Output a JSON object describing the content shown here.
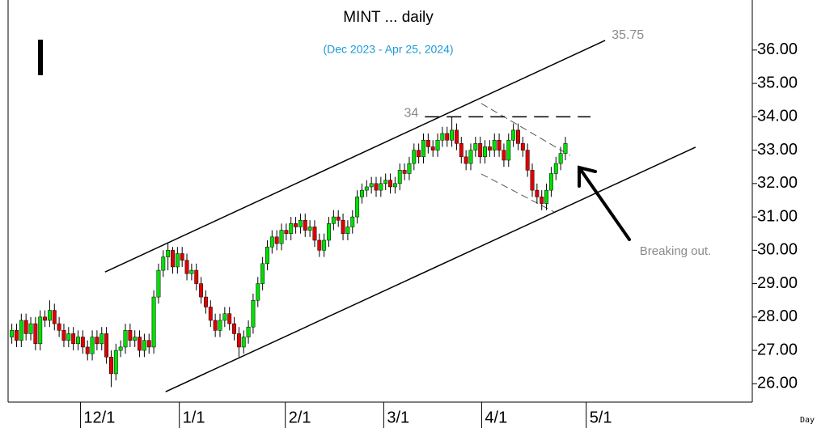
{
  "chart_data": {
    "type": "candlestick",
    "title": "MINT ... daily",
    "subtitle": "(Dec 2023 - Apr 25, 2024)",
    "marker_text": "I",
    "x_unit_label": "Day",
    "annotation": "Breaking out.",
    "channel_target": 35.75,
    "level": 34,
    "up_color": "#00e000",
    "down_color": "#e00000",
    "xlim": [
      -2.5,
      156.5
    ],
    "ylim": [
      25.45,
      37.5
    ],
    "xticks": [
      {
        "value": 14.5,
        "label": "12/1"
      },
      {
        "value": 35.4,
        "label": "1/1"
      },
      {
        "value": 57.8,
        "label": "2/1"
      },
      {
        "value": 78.6,
        "label": "3/1"
      },
      {
        "value": 99.3,
        "label": "4/1"
      },
      {
        "value": 121.4,
        "label": "5/1"
      }
    ],
    "yticks": [
      {
        "value": 26,
        "label": "26.00"
      },
      {
        "value": 27,
        "label": "27.00"
      },
      {
        "value": 28,
        "label": "28.00"
      },
      {
        "value": 29,
        "label": "29.00"
      },
      {
        "value": 30,
        "label": "30.00"
      },
      {
        "value": 31,
        "label": "31.00"
      },
      {
        "value": 32,
        "label": "32.00"
      },
      {
        "value": 33,
        "label": "33.00"
      },
      {
        "value": 34,
        "label": "34.00"
      },
      {
        "value": 35,
        "label": "35.00"
      },
      {
        "value": 36,
        "label": "36.00"
      }
    ],
    "trendlines": [
      {
        "style": "solid",
        "x": [
          19.7,
          125.4
        ],
        "y": [
          29.35,
          36.29
        ]
      },
      {
        "style": "solid",
        "x": [
          32.5,
          144.5
        ],
        "y": [
          25.76,
          33.09
        ]
      },
      {
        "style": "dashed",
        "x": [
          99.2,
          118.0
        ],
        "y": [
          34.4,
          32.84
        ]
      },
      {
        "style": "dashed",
        "x": [
          99.2,
          114.6
        ],
        "y": [
          32.29,
          31.15
        ]
      }
    ],
    "level_span": [
      87.3,
      122.3
    ],
    "candles": [
      [
        27.4,
        27.8,
        27.2,
        27.6
      ],
      [
        27.6,
        27.8,
        27.1,
        27.3
      ],
      [
        27.3,
        28.1,
        27.1,
        27.9
      ],
      [
        27.9,
        28.1,
        27.3,
        27.5
      ],
      [
        27.5,
        28.0,
        27.3,
        27.8
      ],
      [
        27.8,
        28.0,
        27.0,
        27.2
      ],
      [
        27.2,
        28.2,
        27.0,
        28.0
      ],
      [
        28.0,
        28.2,
        27.7,
        27.9
      ],
      [
        27.9,
        28.5,
        27.7,
        28.2
      ],
      [
        28.2,
        28.4,
        27.6,
        27.8
      ],
      [
        27.8,
        28.0,
        27.4,
        27.6
      ],
      [
        27.6,
        27.8,
        27.1,
        27.3
      ],
      [
        27.3,
        27.7,
        27.1,
        27.5
      ],
      [
        27.5,
        27.7,
        27.0,
        27.2
      ],
      [
        27.2,
        27.6,
        27.0,
        27.4
      ],
      [
        27.4,
        27.6,
        26.9,
        27.1
      ],
      [
        27.1,
        27.3,
        26.7,
        26.9
      ],
      [
        26.9,
        27.6,
        26.7,
        27.4
      ],
      [
        27.4,
        27.6,
        27.0,
        27.2
      ],
      [
        27.2,
        27.7,
        27.0,
        27.5
      ],
      [
        27.5,
        27.7,
        26.6,
        26.8
      ],
      [
        26.8,
        27.0,
        25.9,
        26.3
      ],
      [
        26.3,
        27.2,
        26.1,
        27.0
      ],
      [
        27.0,
        27.3,
        26.8,
        27.1
      ],
      [
        27.1,
        27.8,
        26.9,
        27.6
      ],
      [
        27.6,
        27.8,
        27.1,
        27.3
      ],
      [
        27.3,
        27.6,
        27.1,
        27.4
      ],
      [
        27.4,
        27.6,
        26.8,
        27.0
      ],
      [
        27.0,
        27.5,
        26.8,
        27.3
      ],
      [
        27.3,
        27.5,
        26.9,
        27.1
      ],
      [
        27.1,
        28.8,
        26.9,
        28.6
      ],
      [
        28.6,
        29.6,
        28.4,
        29.4
      ],
      [
        29.4,
        30.0,
        29.2,
        29.8
      ],
      [
        29.8,
        30.2,
        29.4,
        30.0
      ],
      [
        30.0,
        30.1,
        29.3,
        29.5
      ],
      [
        29.5,
        30.1,
        29.3,
        29.9
      ],
      [
        29.9,
        30.1,
        29.5,
        29.7
      ],
      [
        29.7,
        29.9,
        29.1,
        29.3
      ],
      [
        29.3,
        29.6,
        29.1,
        29.4
      ],
      [
        29.4,
        29.6,
        28.8,
        29.0
      ],
      [
        29.0,
        29.2,
        28.4,
        28.6
      ],
      [
        28.6,
        28.8,
        28.1,
        28.3
      ],
      [
        28.3,
        28.5,
        27.7,
        27.9
      ],
      [
        27.9,
        28.1,
        27.4,
        27.6
      ],
      [
        27.6,
        28.1,
        27.4,
        27.9
      ],
      [
        27.9,
        28.3,
        27.7,
        28.1
      ],
      [
        28.1,
        28.3,
        27.6,
        27.8
      ],
      [
        27.8,
        28.0,
        27.3,
        27.5
      ],
      [
        27.5,
        27.7,
        26.8,
        27.1
      ],
      [
        27.1,
        27.6,
        26.9,
        27.4
      ],
      [
        27.4,
        27.9,
        27.2,
        27.7
      ],
      [
        27.7,
        28.7,
        27.5,
        28.5
      ],
      [
        28.5,
        29.2,
        28.3,
        29.0
      ],
      [
        29.0,
        29.8,
        28.8,
        29.6
      ],
      [
        29.6,
        30.3,
        29.4,
        30.1
      ],
      [
        30.1,
        30.6,
        29.9,
        30.4
      ],
      [
        30.4,
        30.6,
        30.0,
        30.2
      ],
      [
        30.2,
        30.8,
        30.0,
        30.6
      ],
      [
        30.6,
        30.8,
        30.3,
        30.5
      ],
      [
        30.5,
        31.0,
        30.3,
        30.8
      ],
      [
        30.8,
        31.0,
        30.5,
        30.7
      ],
      [
        30.7,
        31.1,
        30.5,
        30.9
      ],
      [
        30.9,
        31.1,
        30.4,
        30.6
      ],
      [
        30.6,
        30.9,
        30.4,
        30.7
      ],
      [
        30.7,
        30.9,
        30.1,
        30.3
      ],
      [
        30.3,
        30.5,
        29.8,
        30.0
      ],
      [
        30.0,
        30.5,
        29.8,
        30.3
      ],
      [
        30.3,
        31.0,
        30.1,
        30.8
      ],
      [
        30.8,
        31.2,
        30.6,
        31.0
      ],
      [
        31.0,
        31.2,
        30.7,
        30.9
      ],
      [
        30.9,
        31.1,
        30.3,
        30.5
      ],
      [
        30.5,
        30.9,
        30.3,
        30.7
      ],
      [
        30.7,
        31.2,
        30.5,
        31.0
      ],
      [
        31.0,
        31.8,
        30.8,
        31.6
      ],
      [
        31.6,
        32.0,
        31.4,
        31.8
      ],
      [
        31.8,
        32.1,
        31.6,
        31.9
      ],
      [
        31.9,
        32.2,
        31.7,
        32.0
      ],
      [
        32.0,
        32.2,
        31.6,
        31.8
      ],
      [
        31.8,
        32.2,
        31.6,
        32.0
      ],
      [
        32.0,
        32.3,
        31.8,
        32.1
      ],
      [
        32.1,
        32.3,
        31.7,
        31.9
      ],
      [
        31.9,
        32.2,
        31.7,
        32.0
      ],
      [
        32.0,
        32.6,
        31.8,
        32.4
      ],
      [
        32.4,
        32.6,
        32.1,
        32.3
      ],
      [
        32.3,
        32.8,
        32.1,
        32.6
      ],
      [
        32.6,
        33.2,
        32.4,
        33.0
      ],
      [
        33.0,
        33.2,
        32.6,
        32.8
      ],
      [
        32.8,
        33.5,
        32.6,
        33.3
      ],
      [
        33.3,
        33.5,
        32.9,
        33.1
      ],
      [
        33.1,
        33.3,
        32.8,
        33.0
      ],
      [
        33.0,
        33.5,
        32.8,
        33.3
      ],
      [
        33.3,
        33.7,
        33.1,
        33.5
      ],
      [
        33.5,
        33.7,
        33.1,
        33.3
      ],
      [
        33.3,
        34.0,
        33.1,
        33.6
      ],
      [
        33.6,
        33.8,
        33.0,
        33.2
      ],
      [
        33.2,
        33.4,
        32.6,
        32.8
      ],
      [
        32.8,
        33.0,
        32.4,
        32.6
      ],
      [
        32.6,
        33.2,
        32.4,
        33.0
      ],
      [
        33.0,
        33.4,
        32.8,
        33.2
      ],
      [
        33.2,
        33.4,
        32.6,
        32.8
      ],
      [
        32.8,
        33.3,
        32.6,
        33.1
      ],
      [
        33.1,
        33.3,
        32.8,
        33.0
      ],
      [
        33.0,
        33.5,
        32.8,
        33.3
      ],
      [
        33.3,
        33.5,
        32.8,
        33.0
      ],
      [
        33.0,
        33.2,
        32.5,
        32.7
      ],
      [
        32.7,
        33.5,
        32.5,
        33.3
      ],
      [
        33.3,
        33.8,
        33.1,
        33.6
      ],
      [
        33.6,
        33.8,
        33.0,
        33.2
      ],
      [
        33.2,
        33.4,
        32.8,
        33.0
      ],
      [
        33.0,
        33.2,
        32.2,
        32.4
      ],
      [
        32.4,
        32.6,
        31.6,
        31.8
      ],
      [
        31.8,
        32.0,
        31.4,
        31.6
      ],
      [
        31.6,
        31.8,
        31.2,
        31.4
      ],
      [
        31.4,
        32.0,
        31.2,
        31.8
      ],
      [
        31.8,
        32.5,
        31.6,
        32.3
      ],
      [
        32.3,
        32.8,
        32.1,
        32.6
      ],
      [
        32.6,
        33.1,
        32.4,
        32.9
      ],
      [
        32.9,
        33.4,
        32.7,
        33.2
      ]
    ]
  }
}
